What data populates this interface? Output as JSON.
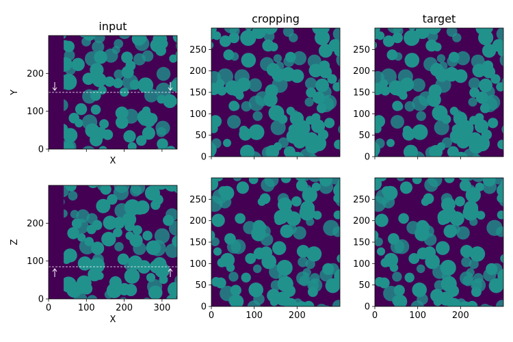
{
  "figure": {
    "colors": {
      "pore": "#440154",
      "solid": "#21918c",
      "marker": "#ffffff"
    }
  },
  "chart_data": [
    {
      "type": "heatmap",
      "title": "input",
      "xlabel": "X",
      "ylabel": "Y",
      "xlim": [
        0,
        340
      ],
      "ylim": [
        0,
        300
      ],
      "xticks": [
        0,
        100,
        200,
        300
      ],
      "yticks": [
        0,
        100,
        200
      ],
      "xticklabels_visible": false,
      "slice_line_y": 150,
      "arrow_direction": "down",
      "blank_band_x": [
        0,
        40
      ],
      "seed": 11
    },
    {
      "type": "heatmap",
      "title": "cropping",
      "xlabel": "",
      "ylabel": "",
      "xlim": [
        0,
        300
      ],
      "ylim": [
        0,
        300
      ],
      "xticks": [
        0,
        100,
        200
      ],
      "yticks": [
        0,
        50,
        100,
        150,
        200,
        250
      ],
      "xticklabels_visible": false,
      "seed": 23
    },
    {
      "type": "heatmap",
      "title": "target",
      "xlabel": "",
      "ylabel": "",
      "xlim": [
        0,
        300
      ],
      "ylim": [
        0,
        300
      ],
      "xticks": [
        0,
        100,
        200
      ],
      "yticks": [
        0,
        50,
        100,
        150,
        200,
        250
      ],
      "xticklabels_visible": false,
      "seed": 23
    },
    {
      "type": "heatmap",
      "title": "",
      "xlabel": "X",
      "ylabel": "Z",
      "xlim": [
        0,
        340
      ],
      "ylim": [
        0,
        300
      ],
      "xticks": [
        0,
        100,
        200,
        300
      ],
      "yticks": [
        0,
        100,
        200
      ],
      "xticklabels_visible": true,
      "slice_line_y": 85,
      "arrow_direction": "up",
      "blank_band_x": [
        0,
        40
      ],
      "seed": 37
    },
    {
      "type": "heatmap",
      "title": "",
      "xlabel": "",
      "ylabel": "",
      "xlim": [
        0,
        300
      ],
      "ylim": [
        0,
        300
      ],
      "xticks": [
        0,
        100,
        200
      ],
      "yticks": [
        0,
        50,
        100,
        150,
        200,
        250
      ],
      "xticklabels_visible": true,
      "seed": 53
    },
    {
      "type": "heatmap",
      "title": "",
      "xlabel": "",
      "ylabel": "",
      "xlim": [
        0,
        300
      ],
      "ylim": [
        0,
        300
      ],
      "xticks": [
        0,
        100,
        200
      ],
      "yticks": [
        0,
        50,
        100,
        150,
        200,
        250
      ],
      "xticklabels_visible": true,
      "seed": 53
    }
  ]
}
